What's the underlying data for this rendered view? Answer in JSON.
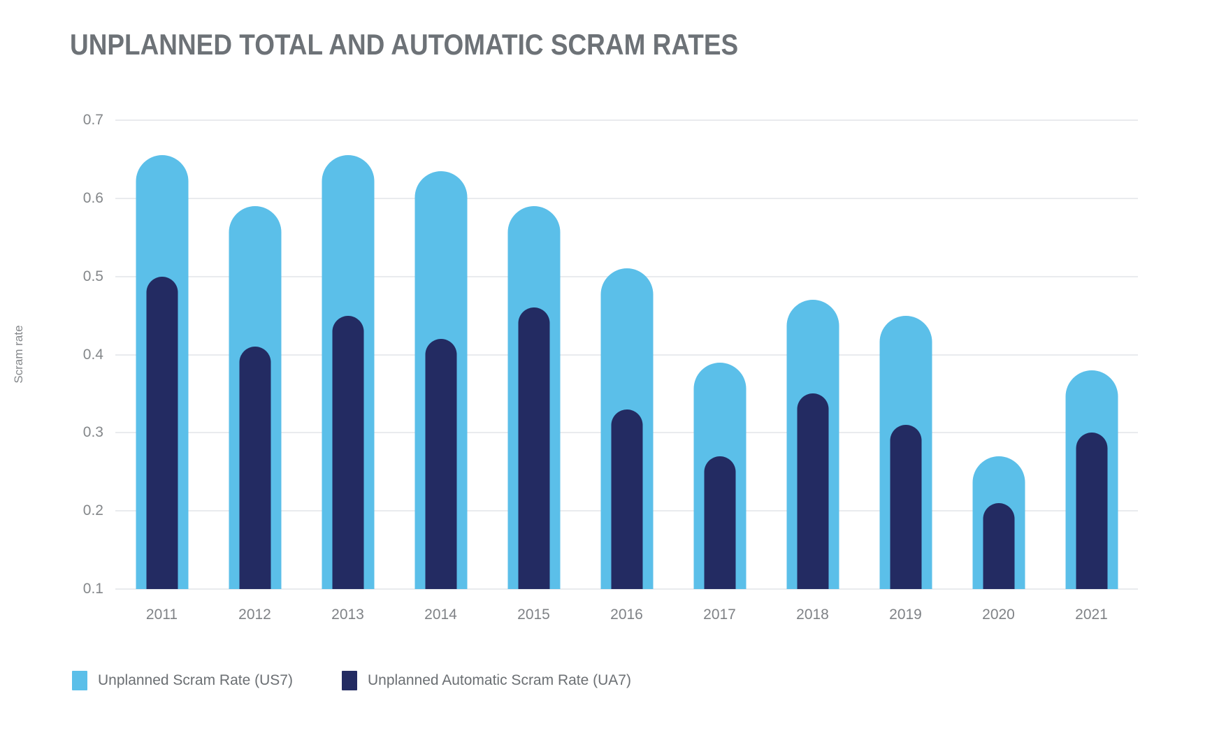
{
  "title": "UNPLANNED TOTAL AND AUTOMATIC SCRAM RATES",
  "chart_data": {
    "type": "bar",
    "title": "UNPLANNED TOTAL AND AUTOMATIC SCRAM RATES",
    "xlabel": "",
    "ylabel": "Scram rate",
    "categories": [
      "2011",
      "2012",
      "2013",
      "2014",
      "2015",
      "2016",
      "2017",
      "2018",
      "2019",
      "2020",
      "2021"
    ],
    "series": [
      {
        "name": "Unplanned Scram Rate (US7)",
        "color": "#5bbfe9",
        "values": [
          0.655,
          0.59,
          0.655,
          0.635,
          0.59,
          0.51,
          0.39,
          0.47,
          0.45,
          0.27,
          0.38
        ]
      },
      {
        "name": "Unplanned Automatic Scram Rate (UA7)",
        "color": "#232b62",
        "values": [
          0.5,
          0.41,
          0.45,
          0.42,
          0.46,
          0.33,
          0.27,
          0.35,
          0.31,
          0.21,
          0.3
        ]
      }
    ],
    "ylim": [
      0.1,
      0.7
    ],
    "y_ticks": [
      0.7,
      0.6,
      0.5,
      0.4,
      0.3,
      0.2,
      0.1
    ],
    "grid": true,
    "legend_position": "bottom"
  },
  "colors": {
    "title_text": "#6d7277",
    "axis_text": "#84878a",
    "legend_text": "#6b6f73",
    "gridline": "#e9ebee",
    "background": "#ffffff"
  }
}
